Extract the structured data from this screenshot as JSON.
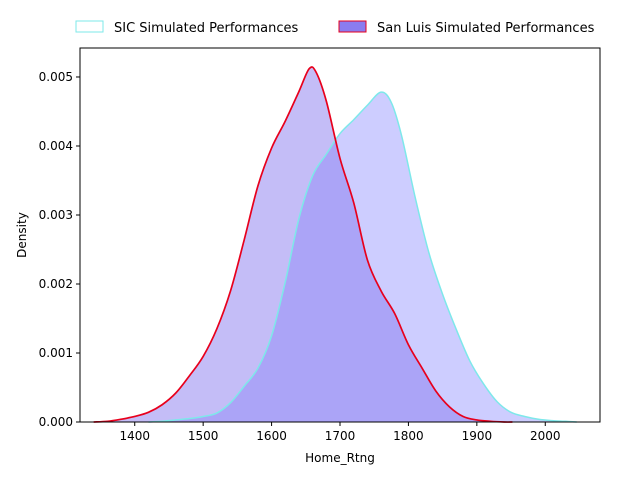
{
  "chart_data": {
    "type": "area",
    "title": "",
    "xlabel": "Home_Rtng",
    "ylabel": "Density",
    "xlim": [
      1320,
      2080
    ],
    "ylim": [
      0,
      0.00542
    ],
    "x_ticks": [
      "1400",
      "1500",
      "1600",
      "1700",
      "1800",
      "1900",
      "2000"
    ],
    "y_ticks": [
      "0.000",
      "0.001",
      "0.002",
      "0.003",
      "0.004",
      "0.005"
    ],
    "grid": false,
    "legend": {
      "placement": "top-outside",
      "ncol": 2
    },
    "series": [
      {
        "name": "SIC Simulated Performances",
        "line_color": "#7ee8ea",
        "fill_color": "#b8b8ff",
        "points": [
          [
            1420,
            0.0
          ],
          [
            1440,
            1e-05
          ],
          [
            1460,
            3e-05
          ],
          [
            1480,
            5e-05
          ],
          [
            1500,
            8e-05
          ],
          [
            1520,
            0.00013
          ],
          [
            1540,
            0.00028
          ],
          [
            1560,
            0.00052
          ],
          [
            1580,
            0.00078
          ],
          [
            1600,
            0.00125
          ],
          [
            1620,
            0.00203
          ],
          [
            1640,
            0.00295
          ],
          [
            1660,
            0.00357
          ],
          [
            1680,
            0.00388
          ],
          [
            1700,
            0.00418
          ],
          [
            1720,
            0.00438
          ],
          [
            1740,
            0.00459
          ],
          [
            1760,
            0.00478
          ],
          [
            1775,
            0.00463
          ],
          [
            1790,
            0.00415
          ],
          [
            1810,
            0.00325
          ],
          [
            1830,
            0.00245
          ],
          [
            1850,
            0.00185
          ],
          [
            1870,
            0.00134
          ],
          [
            1890,
            0.00088
          ],
          [
            1910,
            0.00055
          ],
          [
            1930,
            0.00029
          ],
          [
            1950,
            0.00014
          ],
          [
            1970,
            8e-05
          ],
          [
            1990,
            4e-05
          ],
          [
            2010,
            2e-05
          ],
          [
            2030,
            1e-05
          ],
          [
            2046,
            0.0
          ]
        ]
      },
      {
        "name": "San Luis Simulated Performances",
        "line_color": "#e8001c",
        "fill_color": "#8a7cf0",
        "points": [
          [
            1340,
            0.0
          ],
          [
            1360,
            1e-05
          ],
          [
            1380,
            4e-05
          ],
          [
            1400,
            8e-05
          ],
          [
            1420,
            0.00014
          ],
          [
            1440,
            0.00025
          ],
          [
            1460,
            0.00042
          ],
          [
            1480,
            0.00067
          ],
          [
            1500,
            0.00095
          ],
          [
            1520,
            0.00135
          ],
          [
            1540,
            0.0019
          ],
          [
            1560,
            0.00264
          ],
          [
            1580,
            0.00342
          ],
          [
            1600,
            0.00397
          ],
          [
            1620,
            0.00436
          ],
          [
            1640,
            0.00479
          ],
          [
            1655,
            0.00512
          ],
          [
            1665,
            0.00507
          ],
          [
            1680,
            0.00465
          ],
          [
            1700,
            0.00382
          ],
          [
            1720,
            0.00318
          ],
          [
            1740,
            0.00235
          ],
          [
            1760,
            0.0019
          ],
          [
            1780,
            0.00157
          ],
          [
            1800,
            0.00112
          ],
          [
            1820,
            0.00078
          ],
          [
            1840,
            0.00045
          ],
          [
            1860,
            0.00022
          ],
          [
            1880,
            8e-05
          ],
          [
            1900,
            3e-05
          ],
          [
            1920,
            1e-05
          ],
          [
            1940,
            0.0
          ],
          [
            1952,
            0.0
          ]
        ]
      }
    ]
  }
}
